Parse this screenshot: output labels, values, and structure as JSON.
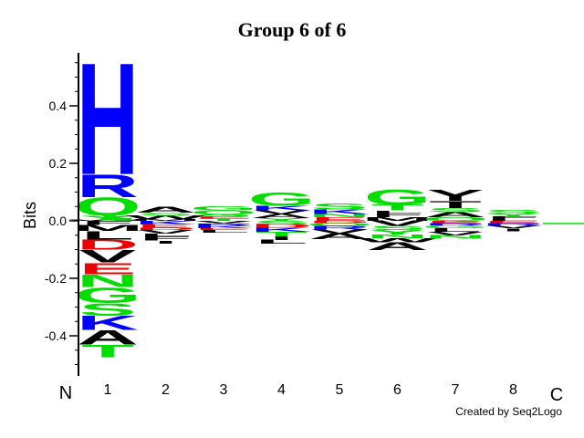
{
  "title": "Group 6 of 6",
  "credit": "Created by Seq2Logo",
  "colors": {
    "blue": "#0000ff",
    "green": "#00dd00",
    "red": "#ee0000",
    "black": "#000000",
    "axis": "#000000"
  },
  "chart_data": {
    "type": "sequence-logo",
    "title": "Group 6 of 6",
    "ylabel": "Bits",
    "ylim": [
      -0.53,
      0.58
    ],
    "yticks": [
      0.4,
      0.2,
      0.0,
      -0.2,
      -0.4
    ],
    "ytick_labels": [
      "0.4",
      "0.2",
      "0.0",
      "-0.2",
      "-0.4"
    ],
    "n_label": "N",
    "c_label": "C",
    "positions": [
      {
        "label": "1",
        "up": [
          {
            "letter": "W",
            "value": 0.003,
            "color": "black"
          },
          {
            "letter": "Y",
            "value": 0.015,
            "color": "green"
          },
          {
            "letter": "Q",
            "value": 0.065,
            "color": "green"
          },
          {
            "letter": "R",
            "value": 0.08,
            "color": "blue"
          },
          {
            "letter": "H",
            "value": 0.4,
            "color": "blue"
          }
        ],
        "down": [
          {
            "letter": "F",
            "value": 0.015,
            "color": "black"
          },
          {
            "letter": "M",
            "value": 0.02,
            "color": "black"
          },
          {
            "letter": "L",
            "value": 0.03,
            "color": "black"
          },
          {
            "letter": "D",
            "value": 0.035,
            "color": "red"
          },
          {
            "letter": "V",
            "value": 0.045,
            "color": "black"
          },
          {
            "letter": "E",
            "value": 0.04,
            "color": "red"
          },
          {
            "letter": "N",
            "value": 0.045,
            "color": "green"
          },
          {
            "letter": "G",
            "value": 0.055,
            "color": "green"
          },
          {
            "letter": "S",
            "value": 0.045,
            "color": "green"
          },
          {
            "letter": "K",
            "value": 0.05,
            "color": "blue"
          },
          {
            "letter": "A",
            "value": 0.05,
            "color": "black"
          },
          {
            "letter": "T",
            "value": 0.045,
            "color": "green"
          }
        ]
      },
      {
        "label": "2",
        "up": [
          {
            "letter": "M",
            "value": 0.006,
            "color": "black"
          },
          {
            "letter": "W",
            "value": 0.012,
            "color": "black"
          },
          {
            "letter": "S",
            "value": 0.01,
            "color": "green"
          },
          {
            "letter": "A",
            "value": 0.02,
            "color": "black"
          }
        ],
        "down": [
          {
            "letter": "K",
            "value": 0.012,
            "color": "blue"
          },
          {
            "letter": "E",
            "value": 0.012,
            "color": "red"
          },
          {
            "letter": "D",
            "value": 0.008,
            "color": "red"
          },
          {
            "letter": "V",
            "value": 0.012,
            "color": "black"
          },
          {
            "letter": "L",
            "value": 0.01,
            "color": "black"
          },
          {
            "letter": "F",
            "value": 0.015,
            "color": "black"
          },
          {
            "letter": "I",
            "value": 0.01,
            "color": "black"
          }
        ]
      },
      {
        "label": "3",
        "up": [
          {
            "letter": "T",
            "value": 0.008,
            "color": "green"
          },
          {
            "letter": "E",
            "value": 0.006,
            "color": "red"
          },
          {
            "letter": "S",
            "value": 0.008,
            "color": "green"
          },
          {
            "letter": "Q",
            "value": 0.014,
            "color": "green"
          },
          {
            "letter": "G",
            "value": 0.014,
            "color": "green"
          }
        ],
        "down": [
          {
            "letter": "V",
            "value": 0.01,
            "color": "black"
          },
          {
            "letter": "R",
            "value": 0.008,
            "color": "blue"
          },
          {
            "letter": "K",
            "value": 0.008,
            "color": "blue"
          },
          {
            "letter": "E",
            "value": 0.006,
            "color": "red"
          },
          {
            "letter": "L",
            "value": 0.01,
            "color": "black"
          }
        ]
      },
      {
        "label": "4",
        "up": [
          {
            "letter": "Y",
            "value": 0.01,
            "color": "green"
          },
          {
            "letter": "A",
            "value": 0.014,
            "color": "black"
          },
          {
            "letter": "V",
            "value": 0.012,
            "color": "black"
          },
          {
            "letter": "K",
            "value": 0.016,
            "color": "blue"
          },
          {
            "letter": "G",
            "value": 0.048,
            "color": "green"
          }
        ],
        "down": [
          {
            "letter": "S",
            "value": 0.012,
            "color": "green"
          },
          {
            "letter": "D",
            "value": 0.012,
            "color": "red"
          },
          {
            "letter": "K",
            "value": 0.014,
            "color": "blue"
          },
          {
            "letter": "T",
            "value": 0.016,
            "color": "green"
          },
          {
            "letter": "I",
            "value": 0.012,
            "color": "black"
          },
          {
            "letter": "L",
            "value": 0.014,
            "color": "black"
          }
        ]
      },
      {
        "label": "5",
        "up": [
          {
            "letter": "E",
            "value": 0.012,
            "color": "red"
          },
          {
            "letter": "N",
            "value": 0.012,
            "color": "green"
          },
          {
            "letter": "K",
            "value": 0.016,
            "color": "blue"
          },
          {
            "letter": "S",
            "value": 0.02,
            "color": "green"
          }
        ],
        "down": [
          {
            "letter": "D",
            "value": 0.008,
            "color": "red"
          },
          {
            "letter": "Q",
            "value": 0.01,
            "color": "green"
          },
          {
            "letter": "R",
            "value": 0.012,
            "color": "blue"
          },
          {
            "letter": "V",
            "value": 0.014,
            "color": "black"
          },
          {
            "letter": "A",
            "value": 0.02,
            "color": "black"
          }
        ]
      },
      {
        "label": "6",
        "up": [
          {
            "letter": "M",
            "value": 0.012,
            "color": "black"
          },
          {
            "letter": "F",
            "value": 0.014,
            "color": "black"
          },
          {
            "letter": "L",
            "value": 0.01,
            "color": "black"
          },
          {
            "letter": "T",
            "value": 0.02,
            "color": "green"
          },
          {
            "letter": "G",
            "value": 0.055,
            "color": "green"
          }
        ],
        "down": [
          {
            "letter": "V",
            "value": 0.018,
            "color": "black"
          },
          {
            "letter": "S",
            "value": 0.014,
            "color": "green"
          },
          {
            "letter": "Y",
            "value": 0.016,
            "color": "green"
          },
          {
            "letter": "N",
            "value": 0.012,
            "color": "green"
          },
          {
            "letter": "W",
            "value": 0.014,
            "color": "black"
          },
          {
            "letter": "A",
            "value": 0.028,
            "color": "black"
          }
        ]
      },
      {
        "label": "7",
        "up": [
          {
            "letter": "Q",
            "value": 0.012,
            "color": "green"
          },
          {
            "letter": "A",
            "value": 0.018,
            "color": "black"
          },
          {
            "letter": "S",
            "value": 0.015,
            "color": "green"
          },
          {
            "letter": "T",
            "value": 0.025,
            "color": "black"
          },
          {
            "letter": "Y",
            "value": 0.04,
            "color": "black"
          }
        ],
        "down": [
          {
            "letter": "E",
            "value": 0.008,
            "color": "red"
          },
          {
            "letter": "R",
            "value": 0.008,
            "color": "blue"
          },
          {
            "letter": "G",
            "value": 0.01,
            "color": "green"
          },
          {
            "letter": "L",
            "value": 0.012,
            "color": "black"
          },
          {
            "letter": "V",
            "value": 0.012,
            "color": "black"
          },
          {
            "letter": "N",
            "value": 0.012,
            "color": "green"
          }
        ]
      },
      {
        "label": "8",
        "up": [
          {
            "letter": "L",
            "value": 0.006,
            "color": "black"
          },
          {
            "letter": "F",
            "value": 0.01,
            "color": "black"
          },
          {
            "letter": "Y",
            "value": 0.01,
            "color": "green"
          },
          {
            "letter": "S",
            "value": 0.012,
            "color": "green"
          }
        ],
        "down": [
          {
            "letter": "E",
            "value": 0.008,
            "color": "red"
          },
          {
            "letter": "R",
            "value": 0.008,
            "color": "blue"
          },
          {
            "letter": "V",
            "value": 0.01,
            "color": "black"
          },
          {
            "letter": "I",
            "value": 0.01,
            "color": "black"
          }
        ]
      }
    ],
    "tail": {
      "value": -0.008,
      "color": "green"
    }
  }
}
